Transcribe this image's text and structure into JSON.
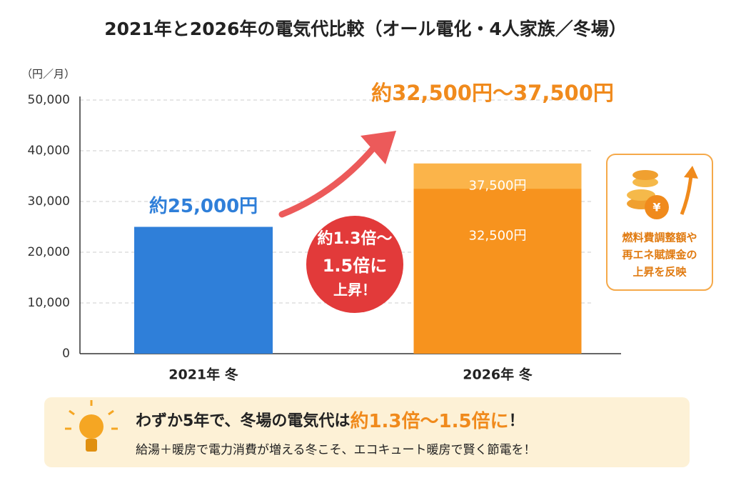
{
  "chart_data": {
    "type": "bar",
    "title": "2021年と2026年の電気代比較（オール電化・4人家族／冬場）",
    "y_unit": "（円／月）",
    "categories": [
      "2021年 冬",
      "2026年 冬"
    ],
    "series": [
      {
        "color": "#2f7fd9",
        "values": [
          25000,
          32500
        ],
        "value_labels": [
          "約25,000円",
          "32,500円"
        ],
        "colors": [
          "#2f7fd9",
          "#f7931e"
        ]
      },
      {
        "color": "#fbb44a",
        "values": [
          null,
          37500
        ],
        "value_labels": [
          null,
          "37,500円"
        ]
      }
    ],
    "ylim": [
      0,
      50000
    ],
    "yticks": [
      0,
      {
        "value": 10000,
        "label": "10,000"
      },
      {
        "value": 20000,
        "label": "20,000"
      },
      {
        "value": 30000,
        "label": "30,000"
      },
      {
        "value": 40000,
        "label": "40,000"
      },
      {
        "value": 50000,
        "label": "50,000"
      }
    ],
    "grid": true,
    "annotations": {
      "range": "約32,500円～37,500円",
      "increase": [
        "約1.3倍～",
        "1.5倍に",
        "上昇！"
      ],
      "reason": [
        "燃料費調整額や",
        "再エネ賦課金の",
        "上昇を反映"
      ]
    },
    "footer": {
      "headline": [
        "わずか5年で、冬場の電気代は",
        "約1.3倍～1.5倍に",
        "！"
      ],
      "note": "給湯＋暖房で電力消費が増える冬こそ、エコキュート暖房で賢く節電を！"
    }
  }
}
